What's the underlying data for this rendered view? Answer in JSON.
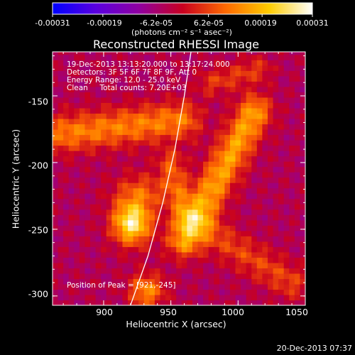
{
  "chart_data": {
    "type": "heatmap",
    "title": "Reconstructed RHESSI Image",
    "xlabel": "Heliocentric X (arcsec)",
    "ylabel": "Heliocentric Y (arcsec)",
    "xlim": [
      862,
      1050
    ],
    "ylim": [
      -307,
      -117
    ],
    "x_ticks": [
      900,
      950,
      1000,
      1050
    ],
    "y_ticks": [
      -150,
      -200,
      -250,
      -300
    ],
    "colorbar": {
      "ticks": [
        "-0.00031",
        "-0.00019",
        "-6.2e-05",
        "6.2e-05",
        "0.00019",
        "0.00031"
      ],
      "tick_values": [
        -0.00031,
        -0.00019,
        -6.2e-05,
        6.2e-05,
        0.00019,
        0.00031
      ],
      "range": [
        -0.00031,
        0.00031
      ],
      "units": "(photons cm⁻² s⁻¹ asec⁻²)",
      "colormap": [
        "#0000ff",
        "#5a00e0",
        "#9000a0",
        "#c80020",
        "#ff6a00",
        "#ffcc00",
        "#ffffff"
      ]
    },
    "info_lines": [
      "19-Dec-2013 13:13:20.000 to 13:17:24.000",
      "Detectors: 3F 5F 6F 7F 8F 9F, Att 0",
      "Energy Range: 12.0 - 25.0 keV",
      "Clean     Total counts: 7.20E+03"
    ],
    "peak_text": "Position of Peak = [921,-245]",
    "peak": [
      921,
      -245
    ],
    "sources": [
      {
        "x": 921,
        "y": -245,
        "amp": 0.00031,
        "sx": 10,
        "sy": 11
      },
      {
        "x": 928,
        "y": -222,
        "amp": 0.00012,
        "sx": 14,
        "sy": 10
      },
      {
        "x": 932,
        "y": -296,
        "amp": 0.00018,
        "sx": 9,
        "sy": 9
      }
    ],
    "ridges": [
      {
        "x1": 960,
        "y1": -258,
        "x2": 1012,
        "y2": -162,
        "amp": 0.0002,
        "w": 9
      },
      {
        "x1": 870,
        "y1": -178,
        "x2": 958,
        "y2": -168,
        "amp": 0.00016,
        "w": 10
      },
      {
        "x1": 975,
        "y1": -250,
        "x2": 1040,
        "y2": -290,
        "amp": 0.0001,
        "w": 9
      },
      {
        "x1": 950,
        "y1": -200,
        "x2": 960,
        "y2": -240,
        "amp": 0.00012,
        "w": 7
      },
      {
        "x1": 980,
        "y1": -140,
        "x2": 1015,
        "y2": -130,
        "amp": 9e-05,
        "w": 7
      }
    ],
    "limb_curve": [
      [
        965,
        -117
      ],
      [
        960,
        -150
      ],
      [
        953,
        -190
      ],
      [
        944,
        -230
      ],
      [
        933,
        -270
      ],
      [
        920,
        -307
      ]
    ]
  },
  "timestamp": "20-Dec-2013 07:37"
}
